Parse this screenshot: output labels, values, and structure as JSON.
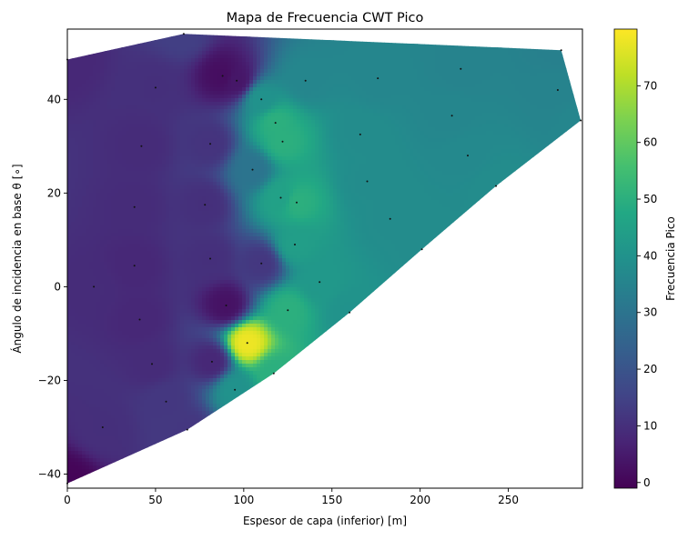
{
  "chart_data": {
    "type": "heatmap",
    "title": "Mapa de Frecuencia CWT Pico",
    "xlabel": "Espesor de capa (inferior) [m]",
    "ylabel": "Ángulo de incidencia en base θ [∘]",
    "colorbar_label": "Frecuencia Pico",
    "colormap": "viridis",
    "xlim": [
      0,
      292
    ],
    "ylim": [
      -43,
      55
    ],
    "clim": [
      -1,
      80
    ],
    "x_ticks": [
      "0",
      "50",
      "100",
      "150",
      "200",
      "250"
    ],
    "x_tick_values": [
      0,
      50,
      100,
      150,
      200,
      250
    ],
    "y_ticks": [
      "−40",
      "−20",
      "0",
      "20",
      "40"
    ],
    "y_tick_values": [
      -40,
      -20,
      0,
      20,
      40
    ],
    "colorbar_ticks": [
      "0",
      "10",
      "20",
      "30",
      "40",
      "50",
      "60",
      "70"
    ],
    "colorbar_tick_values": [
      0,
      10,
      20,
      30,
      40,
      50,
      60,
      70
    ],
    "grid": false,
    "hull_boundary": [
      {
        "x": 0,
        "y": -42
      },
      {
        "x": 0,
        "y": 48.5
      },
      {
        "x": 66,
        "y": 54
      },
      {
        "x": 280,
        "y": 50.5
      },
      {
        "x": 291,
        "y": 35.5
      },
      {
        "x": 243,
        "y": 21.5
      },
      {
        "x": 201,
        "y": 8
      },
      {
        "x": 160,
        "y": -5.5
      },
      {
        "x": 117,
        "y": -18.5
      },
      {
        "x": 68,
        "y": -30.5
      }
    ],
    "points": [
      {
        "x": 0,
        "y": -42,
        "v": 0
      },
      {
        "x": 0,
        "y": 48.5,
        "v": 8
      },
      {
        "x": 66,
        "y": 54,
        "v": 14
      },
      {
        "x": 280,
        "y": 50.5,
        "v": 34
      },
      {
        "x": 291,
        "y": 35.5,
        "v": 36
      },
      {
        "x": 243,
        "y": 21.5,
        "v": 38
      },
      {
        "x": 201,
        "y": 8,
        "v": 38
      },
      {
        "x": 160,
        "y": -5.5,
        "v": 40
      },
      {
        "x": 117,
        "y": -18.5,
        "v": 50
      },
      {
        "x": 68,
        "y": -30.5,
        "v": 12
      },
      {
        "x": 50,
        "y": 42.5,
        "v": 10
      },
      {
        "x": 96,
        "y": 44,
        "v": 4
      },
      {
        "x": 135,
        "y": 44,
        "v": 36
      },
      {
        "x": 176,
        "y": 44.5,
        "v": 36
      },
      {
        "x": 223,
        "y": 46.5,
        "v": 35
      },
      {
        "x": 278,
        "y": 42,
        "v": 35
      },
      {
        "x": 218,
        "y": 36.5,
        "v": 36
      },
      {
        "x": 166,
        "y": 32.5,
        "v": 38
      },
      {
        "x": 122,
        "y": 31,
        "v": 50
      },
      {
        "x": 81,
        "y": 30.5,
        "v": 11
      },
      {
        "x": 42,
        "y": 30,
        "v": 9
      },
      {
        "x": 227,
        "y": 28,
        "v": 37
      },
      {
        "x": 170,
        "y": 22.5,
        "v": 38
      },
      {
        "x": 121,
        "y": 19,
        "v": 45
      },
      {
        "x": 78,
        "y": 17.5,
        "v": 10
      },
      {
        "x": 38,
        "y": 17,
        "v": 9
      },
      {
        "x": 183,
        "y": 14.5,
        "v": 38
      },
      {
        "x": 129,
        "y": 9,
        "v": 44
      },
      {
        "x": 81,
        "y": 6,
        "v": 10
      },
      {
        "x": 38,
        "y": 4.5,
        "v": 8
      },
      {
        "x": 143,
        "y": 1,
        "v": 42
      },
      {
        "x": 90,
        "y": -4,
        "v": 3
      },
      {
        "x": 41,
        "y": -7,
        "v": 8
      },
      {
        "x": 102,
        "y": -12,
        "v": 78
      },
      {
        "x": 48,
        "y": -16.5,
        "v": 9
      },
      {
        "x": 56,
        "y": -24.5,
        "v": 12
      },
      {
        "x": 20,
        "y": -30,
        "v": 10
      },
      {
        "x": 15,
        "y": 0,
        "v": 9
      },
      {
        "x": 82,
        "y": -16,
        "v": 8
      },
      {
        "x": 110,
        "y": 5,
        "v": 12
      },
      {
        "x": 105,
        "y": 25,
        "v": 30
      },
      {
        "x": 88,
        "y": 45,
        "v": 2
      },
      {
        "x": 110,
        "y": 40,
        "v": 40
      },
      {
        "x": 130,
        "y": 18,
        "v": 50
      },
      {
        "x": 118,
        "y": 35,
        "v": 50
      },
      {
        "x": 125,
        "y": -5,
        "v": 50
      },
      {
        "x": 95,
        "y": -22,
        "v": 40
      }
    ]
  }
}
